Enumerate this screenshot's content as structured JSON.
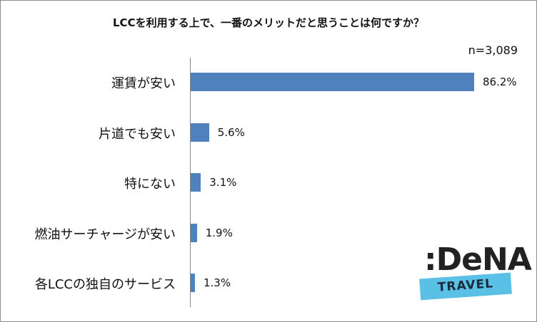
{
  "chart_data": {
    "type": "bar",
    "orientation": "horizontal",
    "title": "LCCを利用する上で、一番のメリットだと思うことは何ですか？",
    "note": "n=3,089",
    "categories": [
      "運賃が安い",
      "片道でも安い",
      "特にない",
      "燃油サーチャージが安い",
      "各LCCの独自のサービス"
    ],
    "values": [
      86.2,
      5.6,
      3.1,
      1.9,
      1.3
    ],
    "value_labels": [
      "86.2%",
      "5.6%",
      "3.1%",
      "1.9%",
      "1.3%"
    ],
    "unit": "%",
    "xlim": [
      0,
      100
    ],
    "bar_color": "#4f81bd",
    "grid": false,
    "legend": "none"
  },
  "logo": {
    "word": ":DeNA",
    "sub": "TRAVEL",
    "band_color": "#5bc0e6"
  }
}
